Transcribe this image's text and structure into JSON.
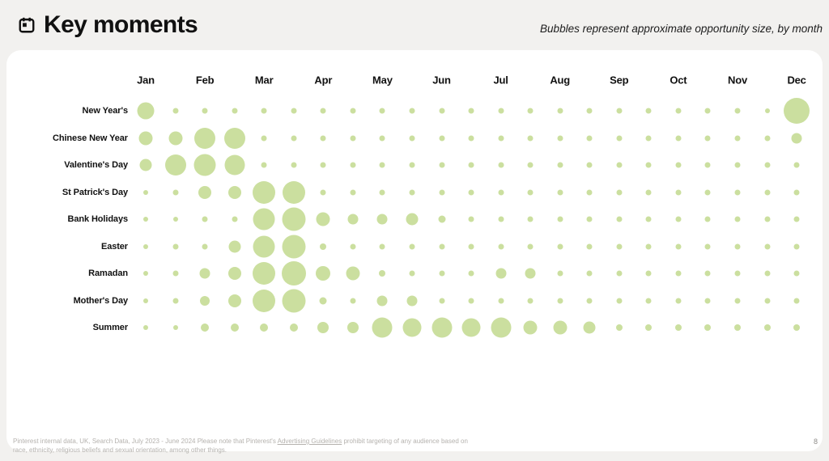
{
  "header": {
    "title": "Key moments",
    "subtitle": "Bubbles represent approximate opportunity size, by month",
    "icon": "calendar-icon"
  },
  "chart_data": {
    "type": "bubble",
    "title": "Key moments",
    "note": "Bubbles represent approximate opportunity size, by month",
    "months": [
      "Jan",
      "Feb",
      "Mar",
      "Apr",
      "May",
      "Jun",
      "Jul",
      "Aug",
      "Sep",
      "Oct",
      "Nov",
      "Dec"
    ],
    "x_resolution": "23 half-month positions from Jan through Dec",
    "size_unit": "approximate bubble diameter in px (relative opportunity size)",
    "bubble_color": "#cbdf9f",
    "rows": [
      {
        "label": "New Year's",
        "sizes": [
          21,
          7,
          7,
          7,
          7,
          7,
          7,
          7,
          7,
          7,
          7,
          7,
          7,
          7,
          7,
          7,
          7,
          7,
          7,
          7,
          7,
          6,
          32
        ]
      },
      {
        "label": "Chinese New Year",
        "sizes": [
          17,
          17,
          26,
          26,
          7,
          7,
          7,
          7,
          7,
          7,
          7,
          7,
          7,
          7,
          7,
          7,
          7,
          7,
          7,
          7,
          7,
          7,
          13
        ]
      },
      {
        "label": "Valentine's Day",
        "sizes": [
          15,
          26,
          27,
          25,
          7,
          7,
          7,
          7,
          7,
          7,
          7,
          7,
          7,
          7,
          7,
          7,
          7,
          7,
          7,
          7,
          7,
          7,
          7
        ]
      },
      {
        "label": "St Patrick's Day",
        "sizes": [
          6,
          7,
          16,
          16,
          28,
          28,
          7,
          7,
          7,
          7,
          7,
          7,
          7,
          7,
          7,
          7,
          7,
          7,
          7,
          7,
          7,
          7,
          7
        ]
      },
      {
        "label": "Bank Holidays",
        "sizes": [
          6,
          6,
          7,
          7,
          27,
          29,
          17,
          13,
          13,
          15,
          9,
          7,
          7,
          7,
          7,
          7,
          7,
          7,
          7,
          7,
          7,
          7,
          7
        ]
      },
      {
        "label": "Easter",
        "sizes": [
          6,
          7,
          7,
          15,
          27,
          29,
          8,
          7,
          7,
          7,
          7,
          7,
          7,
          7,
          7,
          7,
          7,
          7,
          7,
          7,
          7,
          7,
          7
        ]
      },
      {
        "label": "Ramadan",
        "sizes": [
          6,
          7,
          13,
          16,
          28,
          30,
          18,
          17,
          8,
          7,
          7,
          7,
          13,
          13,
          7,
          7,
          7,
          7,
          7,
          7,
          7,
          7,
          7
        ]
      },
      {
        "label": "Mother's Day",
        "sizes": [
          6,
          7,
          12,
          16,
          28,
          29,
          9,
          7,
          13,
          13,
          7,
          7,
          7,
          7,
          7,
          7,
          7,
          7,
          7,
          7,
          7,
          7,
          7
        ]
      },
      {
        "label": "Summer",
        "sizes": [
          6,
          6,
          10,
          10,
          10,
          10,
          14,
          14,
          25,
          23,
          25,
          23,
          25,
          17,
          17,
          15,
          8,
          8,
          8,
          8,
          8,
          8,
          8
        ]
      }
    ]
  },
  "footer": {
    "text_before": "Pinterest internal data, UK, Search Data, July 2023 - June 2024 Please note that Pinterest's ",
    "link_label": "Advertising Guidelines",
    "text_after": " prohibit targeting of any audience based on race, ethnicity, religious beliefs and sexual orientation, among other things.",
    "page_number": "8"
  }
}
